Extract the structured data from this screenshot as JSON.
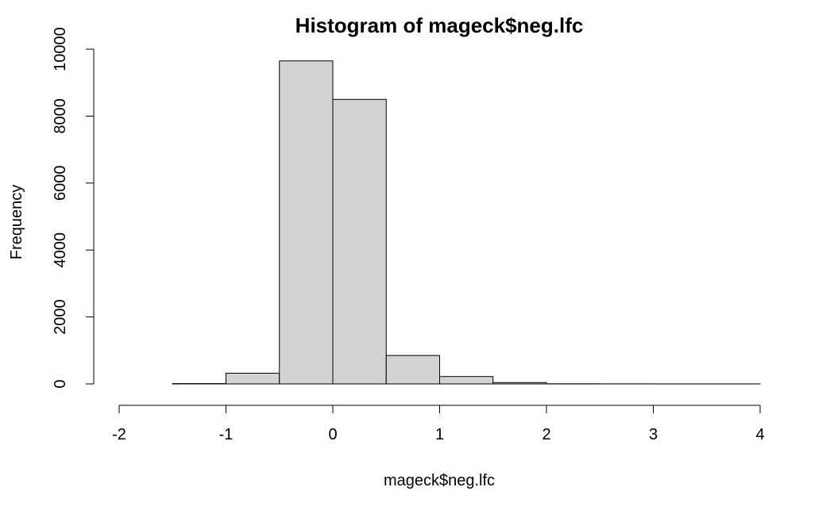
{
  "chart_data": {
    "type": "bar",
    "title": "Histogram of mageck$neg.lfc",
    "xlabel": "mageck$neg.lfc",
    "ylabel": "Frequency",
    "bins": [
      {
        "start": -2.0,
        "end": -1.5,
        "count": 0
      },
      {
        "start": -1.5,
        "end": -1.0,
        "count": 10
      },
      {
        "start": -1.0,
        "end": -0.5,
        "count": 320
      },
      {
        "start": -0.5,
        "end": 0.0,
        "count": 9650
      },
      {
        "start": 0.0,
        "end": 0.5,
        "count": 8500
      },
      {
        "start": 0.5,
        "end": 1.0,
        "count": 850
      },
      {
        "start": 1.0,
        "end": 1.5,
        "count": 220
      },
      {
        "start": 1.5,
        "end": 2.0,
        "count": 40
      },
      {
        "start": 2.0,
        "end": 2.5,
        "count": 5
      },
      {
        "start": 2.5,
        "end": 3.0,
        "count": 2
      },
      {
        "start": 3.0,
        "end": 3.5,
        "count": 1
      },
      {
        "start": 3.5,
        "end": 4.0,
        "count": 1
      }
    ],
    "x_ticks": [
      -2,
      -1,
      0,
      1,
      2,
      3,
      4
    ],
    "y_ticks": [
      0,
      2000,
      4000,
      6000,
      8000,
      10000
    ],
    "xlim": [
      -2,
      4
    ],
    "ylim": [
      0,
      10000
    ],
    "grid": false,
    "bar_color": "#d3d3d3",
    "edge_color": "#000000"
  }
}
